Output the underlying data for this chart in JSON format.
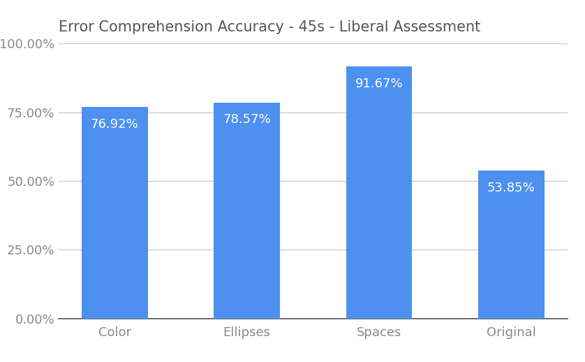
{
  "title": "Error Comprehension Accuracy - 45s - Liberal Assessment",
  "categories": [
    "Color",
    "Ellipses",
    "Spaces",
    "Original"
  ],
  "values": [
    76.92,
    78.57,
    91.67,
    53.85
  ],
  "labels": [
    "76.92%",
    "78.57%",
    "91.67%",
    "53.85%"
  ],
  "bar_color": "#4D90F0",
  "label_color": "#ffffff",
  "background_color": "#ffffff",
  "title_color": "#555555",
  "axis_label_color": "#888888",
  "grid_color": "#cccccc",
  "ylim": [
    0,
    100
  ],
  "yticks": [
    0,
    25,
    50,
    75,
    100
  ],
  "ytick_labels": [
    "0.00%",
    "25.00%",
    "50.00%",
    "75.00%",
    "100.00%"
  ],
  "title_fontsize": 15,
  "tick_fontsize": 13,
  "label_fontsize": 13,
  "bar_width": 0.5
}
